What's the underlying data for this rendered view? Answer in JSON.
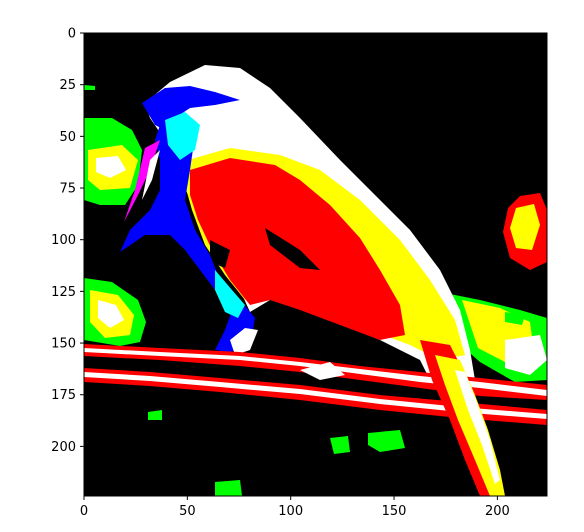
{
  "chart_data": {
    "type": "heatmap",
    "title": "",
    "xlabel": "",
    "ylabel": "",
    "xlim": [
      0,
      224
    ],
    "ylim": [
      224,
      0
    ],
    "xticks": [
      0,
      50,
      100,
      150,
      200
    ],
    "yticks": [
      0,
      25,
      50,
      75,
      100,
      125,
      150,
      175,
      200
    ],
    "xtick_labels": [
      "0",
      "50",
      "100",
      "150",
      "200"
    ],
    "ytick_labels": [
      "0",
      "25",
      "50",
      "75",
      "100",
      "125",
      "150",
      "175",
      "200"
    ],
    "grid": false,
    "colors": {
      "background": "#000000",
      "red": "#ff0000",
      "yellow": "#ffff00",
      "white": "#ffffff",
      "green": "#00ff00",
      "blue": "#0000ff",
      "cyan": "#00ffff",
      "magenta": "#ff00ff"
    }
  }
}
